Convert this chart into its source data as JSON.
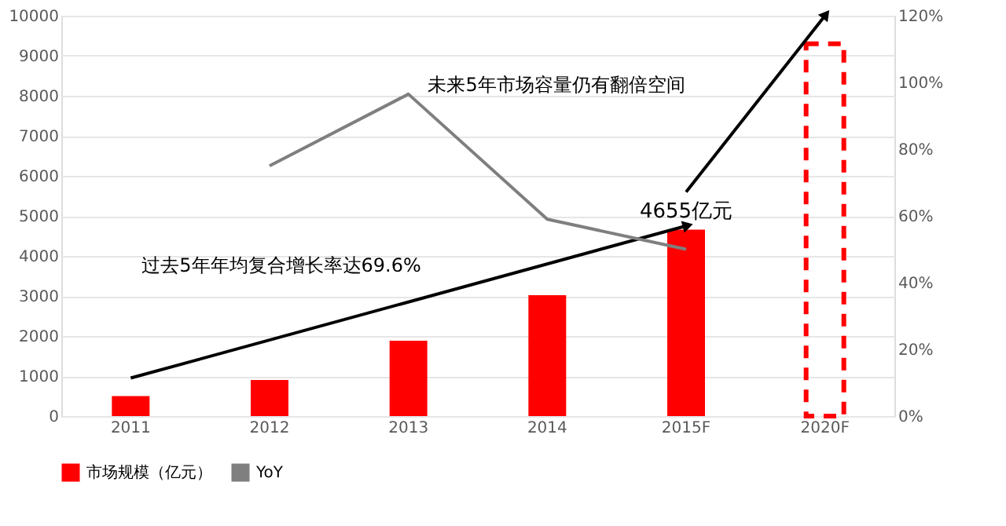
{
  "chart_data": {
    "type": "bar",
    "categories": [
      "2011",
      "2012",
      "2013",
      "2014",
      "2015F",
      "2020F"
    ],
    "series": [
      {
        "name": "市场规模（亿元）",
        "color": "#ff0000",
        "values": [
          500,
          900,
          1880,
          3020,
          4655,
          null
        ],
        "value_labels": [
          null,
          null,
          null,
          null,
          "4655亿元",
          null
        ]
      },
      {
        "color": "#ff0000",
        "line_style": "dashed",
        "values": [
          null,
          null,
          null,
          null,
          null,
          9300
        ]
      },
      {
        "name": "YoY",
        "type": "line",
        "axis": "y2",
        "color": "#7f7f7f",
        "values": [
          null,
          75,
          96.5,
          59,
          50,
          null
        ]
      },
      {
        "type": "line",
        "color": "#000000",
        "values": [
          950,
          null,
          null,
          null,
          4750,
          null
        ]
      },
      {
        "type": "line",
        "color": "#000000",
        "values": [
          null,
          null,
          null,
          null,
          5600,
          10000
        ]
      }
    ],
    "ylim": [
      0,
      10000
    ],
    "yticks": [
      0,
      1000,
      2000,
      3000,
      4000,
      5000,
      6000,
      7000,
      8000,
      9000,
      10000
    ],
    "y2lim": [
      0,
      120
    ],
    "y2ticks": [
      {
        "value": 0,
        "label": "0%"
      },
      {
        "value": 20,
        "label": "20%"
      },
      {
        "value": 40,
        "label": "40%"
      },
      {
        "value": 60,
        "label": "60%"
      },
      {
        "value": 80,
        "label": "80%"
      },
      {
        "value": 100,
        "label": "100%"
      },
      {
        "value": 120,
        "label": "120%"
      }
    ],
    "annotations": [
      "过去5年年均复合增长率达69.6%",
      "未来5年市场容量仍有翻倍空间"
    ],
    "grid": "y",
    "legend": "bottom"
  }
}
